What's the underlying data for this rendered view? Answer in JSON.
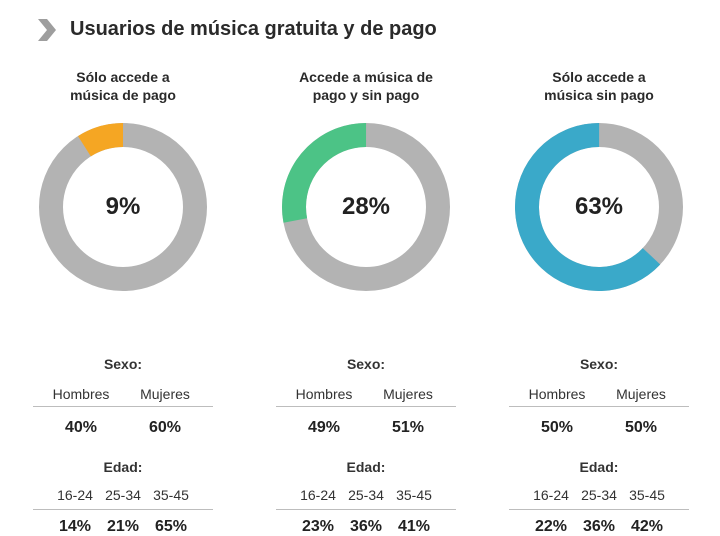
{
  "title": "Usuarios de música gratuita y de pago",
  "labels": {
    "sexo": "Sexo:",
    "hombres": "Hombres",
    "mujeres": "Mujeres",
    "edad": "Edad:",
    "age1": "16-24",
    "age2": "25-34",
    "age3": "35-45"
  },
  "colors": {
    "track": "#b3b3b3",
    "chevron": "#9e9e9e"
  },
  "chart_data": [
    {
      "type": "pie",
      "title": "Sólo accede a música de pago",
      "title_line1": "Sólo accede a",
      "title_line2": "música de pago",
      "value": 9,
      "value_label": "9%",
      "color": "#f5a623",
      "sexo": {
        "hombres": "40%",
        "mujeres": "60%"
      },
      "edad": {
        "a16_24": "14%",
        "a25_34": "21%",
        "a35_45": "65%"
      }
    },
    {
      "type": "pie",
      "title": "Accede a música de pago y sin pago",
      "title_line1": "Accede a música de",
      "title_line2": "pago y sin pago",
      "value": 28,
      "value_label": "28%",
      "color": "#4cc386",
      "sexo": {
        "hombres": "49%",
        "mujeres": "51%"
      },
      "edad": {
        "a16_24": "23%",
        "a25_34": "36%",
        "a35_45": "41%"
      }
    },
    {
      "type": "pie",
      "title": "Sólo accede a música sin pago",
      "title_line1": "Sólo accede a",
      "title_line2": "música sin pago",
      "value": 63,
      "value_label": "63%",
      "color": "#3aa9c9",
      "sexo": {
        "hombres": "50%",
        "mujeres": "50%"
      },
      "edad": {
        "a16_24": "22%",
        "a25_34": "36%",
        "a35_45": "42%"
      }
    }
  ]
}
